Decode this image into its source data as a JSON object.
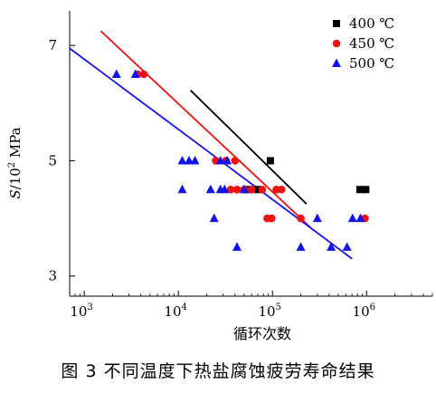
{
  "caption": "图 3    不同温度下热盐腐蚀疲劳寿命结果",
  "chart_data": {
    "type": "scatter",
    "title": "",
    "xlabel": "循环次数",
    "ylabel_parts": {
      "var": "S",
      "mid": "/10",
      "exp": "2",
      "unit": " MPa"
    },
    "xscale": "log",
    "xlim": [
      700,
      5000000
    ],
    "ylim": [
      2.65,
      7.6
    ],
    "x_ticks": [
      {
        "value": 1000,
        "base": "10",
        "exp": "3"
      },
      {
        "value": 10000,
        "base": "10",
        "exp": "4"
      },
      {
        "value": 100000,
        "base": "10",
        "exp": "5"
      },
      {
        "value": 1000000,
        "base": "10",
        "exp": "6"
      }
    ],
    "y_ticks": [
      {
        "value": 3,
        "label": "3"
      },
      {
        "value": 5,
        "label": "5"
      },
      {
        "value": 7,
        "label": "7"
      }
    ],
    "legend_position": "top-right",
    "series": [
      {
        "name": "400 ℃",
        "marker": "square",
        "color": "#000000",
        "points": [
          [
            55000,
            4.5
          ],
          [
            70000,
            4.5
          ],
          [
            95000,
            5.0
          ],
          [
            850000,
            4.5
          ],
          [
            980000,
            4.5
          ]
        ],
        "fit": [
          [
            13500,
            6.22
          ],
          [
            230000,
            4.25
          ]
        ]
      },
      {
        "name": "450 ℃",
        "marker": "circle",
        "color": "#ee1111",
        "points": [
          [
            3700,
            6.5
          ],
          [
            4300,
            6.5
          ],
          [
            25000,
            5.0
          ],
          [
            32000,
            5.0
          ],
          [
            40000,
            5.0
          ],
          [
            36000,
            4.5
          ],
          [
            42000,
            4.5
          ],
          [
            50000,
            4.5
          ],
          [
            60000,
            4.5
          ],
          [
            78000,
            4.5
          ],
          [
            88000,
            4.0
          ],
          [
            98000,
            4.0
          ],
          [
            110000,
            4.5
          ],
          [
            125000,
            4.5
          ],
          [
            200000,
            4.0
          ],
          [
            960000,
            4.0
          ]
        ],
        "fit": [
          [
            1500,
            7.25
          ],
          [
            270000,
            3.8
          ]
        ]
      },
      {
        "name": "500 ℃",
        "marker": "triangle",
        "color": "#1111ee",
        "points": [
          [
            2200,
            6.5
          ],
          [
            3500,
            6.5
          ],
          [
            11000,
            5.0
          ],
          [
            13000,
            5.0
          ],
          [
            15000,
            5.0
          ],
          [
            28000,
            5.0
          ],
          [
            33000,
            5.0
          ],
          [
            11000,
            4.5
          ],
          [
            22000,
            4.5
          ],
          [
            28000,
            4.5
          ],
          [
            31000,
            4.5
          ],
          [
            50000,
            4.5
          ],
          [
            24000,
            4.0
          ],
          [
            42000,
            3.5
          ],
          [
            300000,
            4.0
          ],
          [
            200000,
            3.5
          ],
          [
            420000,
            3.5
          ],
          [
            620000,
            3.5
          ],
          [
            710000,
            4.0
          ],
          [
            860000,
            4.0
          ]
        ],
        "fit": [
          [
            700,
            6.95
          ],
          [
            700000,
            3.3
          ]
        ]
      }
    ]
  }
}
